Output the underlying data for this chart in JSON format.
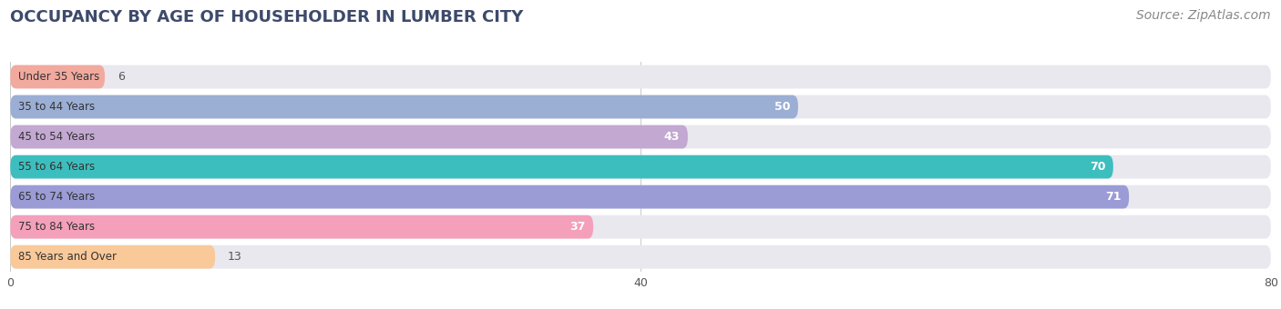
{
  "title": "OCCUPANCY BY AGE OF HOUSEHOLDER IN LUMBER CITY",
  "source": "Source: ZipAtlas.com",
  "categories": [
    "Under 35 Years",
    "35 to 44 Years",
    "45 to 54 Years",
    "55 to 64 Years",
    "65 to 74 Years",
    "75 to 84 Years",
    "85 Years and Over"
  ],
  "values": [
    6,
    50,
    43,
    70,
    71,
    37,
    13
  ],
  "bar_colors": [
    "#f2a99e",
    "#9baed4",
    "#c3a8d1",
    "#3dbebe",
    "#9b9bd6",
    "#f4a0ba",
    "#f9c99a"
  ],
  "xlim": [
    0,
    80
  ],
  "xticks": [
    0,
    40,
    80
  ],
  "title_color": "#3d4a6b",
  "source_color": "#888888",
  "bar_bg_color": "#e8e8ee",
  "label_inside_color": "#ffffff",
  "label_outside_color": "#555555",
  "title_fontsize": 13,
  "source_fontsize": 10,
  "bar_label_fontsize": 9,
  "axis_tick_fontsize": 9,
  "category_fontsize": 8.5,
  "bar_height": 0.78,
  "threshold": 18
}
